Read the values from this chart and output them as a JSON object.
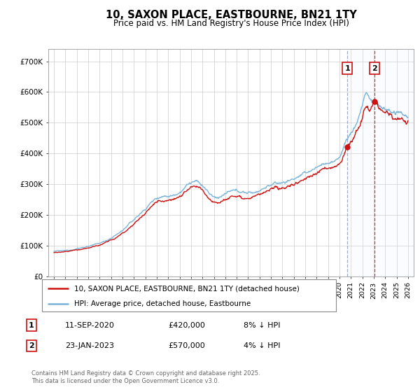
{
  "title": "10, SAXON PLACE, EASTBOURNE, BN21 1TY",
  "subtitle": "Price paid vs. HM Land Registry's House Price Index (HPI)",
  "legend_line1": "10, SAXON PLACE, EASTBOURNE, BN21 1TY (detached house)",
  "legend_line2": "HPI: Average price, detached house, Eastbourne",
  "annotation1_label": "1",
  "annotation1_date": "11-SEP-2020",
  "annotation1_price": "£420,000",
  "annotation1_hpi": "8% ↓ HPI",
  "annotation2_label": "2",
  "annotation2_date": "23-JAN-2023",
  "annotation2_price": "£570,000",
  "annotation2_hpi": "4% ↓ HPI",
  "copyright": "Contains HM Land Registry data © Crown copyright and database right 2025.\nThis data is licensed under the Open Government Licence v3.0.",
  "hpi_color": "#7ab4d8",
  "price_color": "#cc1111",
  "vline1_color": "#aaaacc",
  "vline2_color": "#cc1111",
  "shade_color": "#ddeeff",
  "ylabel_ticks": [
    "£0",
    "£100K",
    "£200K",
    "£300K",
    "£400K",
    "£500K",
    "£600K",
    "£700K"
  ],
  "ytick_values": [
    0,
    100000,
    200000,
    300000,
    400000,
    500000,
    600000,
    700000
  ],
  "ylim": [
    0,
    740000
  ],
  "xlim_start": 1994.5,
  "xlim_end": 2026.5,
  "sale1_year": 2020.7,
  "sale1_price": 420000,
  "sale2_year": 2023.06,
  "sale2_price": 570000,
  "background_color": "#ffffff",
  "grid_color": "#cccccc"
}
